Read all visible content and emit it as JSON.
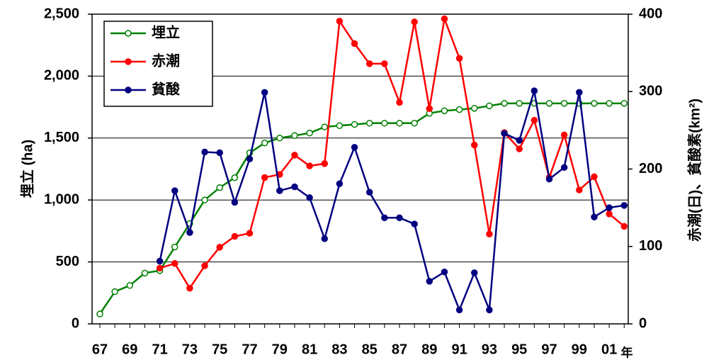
{
  "chart_data": {
    "type": "line",
    "categories": [
      "67",
      null,
      "69",
      null,
      "71",
      null,
      "73",
      null,
      "75",
      null,
      "77",
      null,
      "79",
      null,
      "81",
      null,
      "83",
      null,
      "85",
      null,
      "87",
      null,
      "89",
      null,
      "91",
      null,
      "93",
      null,
      "95",
      null,
      "97",
      null,
      "99",
      null,
      "01",
      null
    ],
    "xlabel": "年",
    "ylabel": "埋立 (ha)",
    "y2label": "赤潮(日)、貧酸素(km²)",
    "ylim": [
      0,
      2500
    ],
    "yticks": [
      0,
      500,
      {
        "value": 1000,
        "label": "1,000"
      },
      {
        "value": 1500,
        "label": "1,500"
      },
      {
        "value": 2000,
        "label": "2,000"
      },
      {
        "value": 2500,
        "label": "2,500"
      }
    ],
    "y2lim": [
      0,
      400
    ],
    "y2ticks": [
      0,
      100,
      200,
      300,
      400
    ],
    "grid": true,
    "legend": "upper left",
    "series": [
      {
        "name": "埋立",
        "color": "#008000",
        "marker": "hollow",
        "values": [
          80,
          260,
          310,
          410,
          430,
          620,
          810,
          1000,
          1100,
          1180,
          1380,
          1460,
          1500,
          1520,
          1540,
          1590,
          1600,
          1610,
          1620,
          1620,
          1620,
          1620,
          1700,
          1720,
          1730,
          1740,
          1760,
          1780,
          1780,
          1780,
          1780,
          1780,
          1780,
          1780,
          1780,
          1780
        ]
      },
      {
        "name": "赤潮",
        "color": "#ff0000",
        "axis": "y2",
        "marker": "filled",
        "values": [
          null,
          null,
          null,
          null,
          72,
          78,
          46,
          75,
          99,
          113,
          117,
          189,
          193,
          218,
          204,
          207,
          391,
          362,
          336,
          336,
          286,
          390,
          278,
          394,
          343,
          231,
          116,
          247,
          226,
          263,
          189,
          244,
          173,
          190,
          142,
          126
        ]
      },
      {
        "name": "貧酸",
        "color": "#000080",
        "axis": "y2",
        "marker": "filled",
        "values": [
          null,
          null,
          null,
          null,
          81,
          172,
          118,
          222,
          221,
          157,
          213,
          299,
          172,
          177,
          163,
          110,
          181,
          228,
          170,
          137,
          137,
          129,
          55,
          67,
          18,
          66,
          18,
          246,
          237,
          301,
          187,
          202,
          299,
          138,
          150,
          153
        ]
      }
    ]
  }
}
